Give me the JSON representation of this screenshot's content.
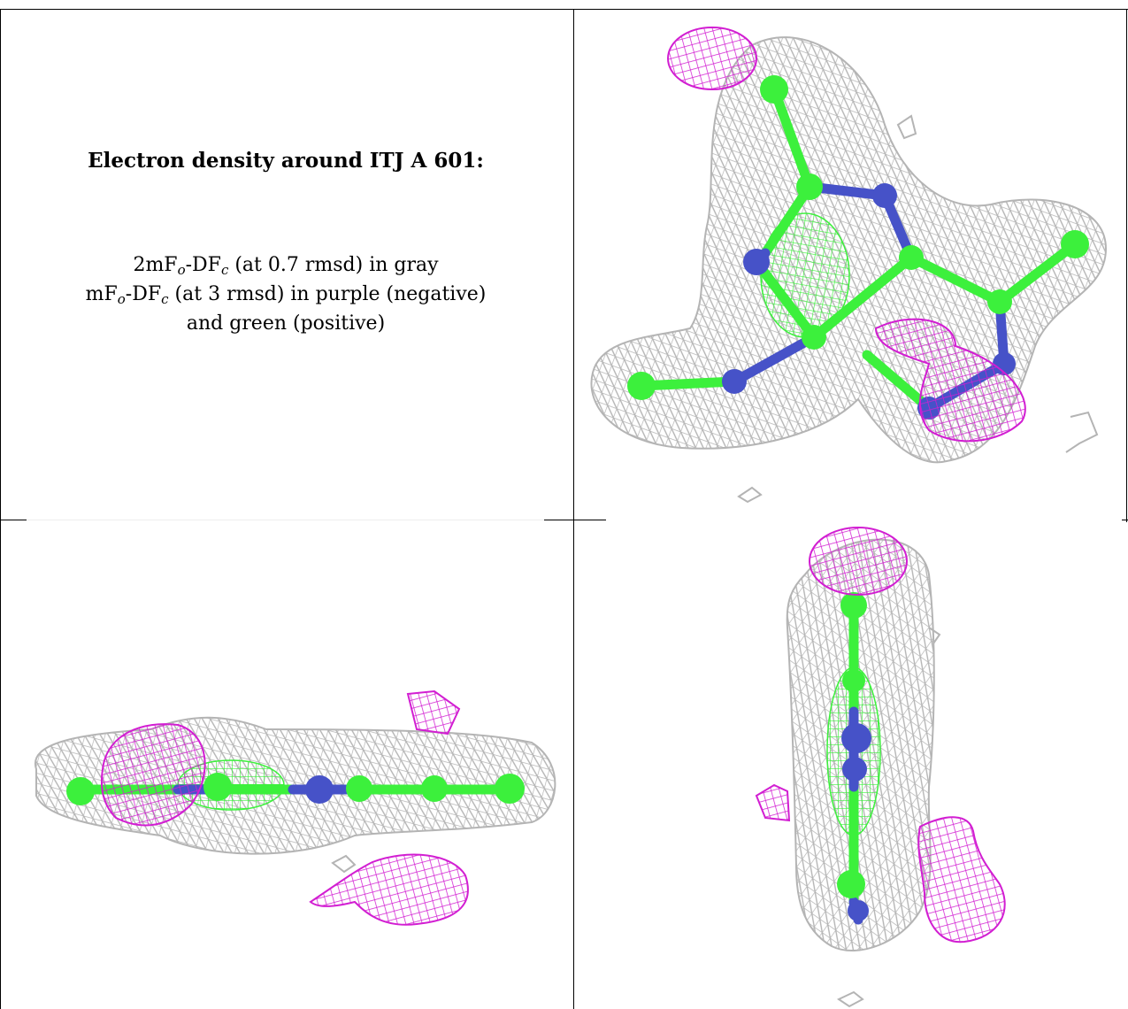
{
  "caption": {
    "title": "Electron density around ITJ A 601:",
    "line1": {
      "pre": "2mF",
      "sub1": "o",
      "mid": "-DF",
      "sub2": "c",
      "post": " (at 0.7 rmsd) in gray"
    },
    "line2": {
      "pre": "mF",
      "sub1": "o",
      "mid": "-DF",
      "sub2": "c",
      "post": " (at 3 rmsd) in purple (negative)"
    },
    "line3": "and green (positive)"
  },
  "colors": {
    "mesh_gray": "#b4b4b4",
    "negative_purple": "#d21ed2",
    "positive_green": "#3cf03c",
    "nitrogen_blue": "#4652c8"
  },
  "panels": [
    {
      "name": "top-view"
    },
    {
      "name": "side-view"
    },
    {
      "name": "end-view"
    }
  ]
}
